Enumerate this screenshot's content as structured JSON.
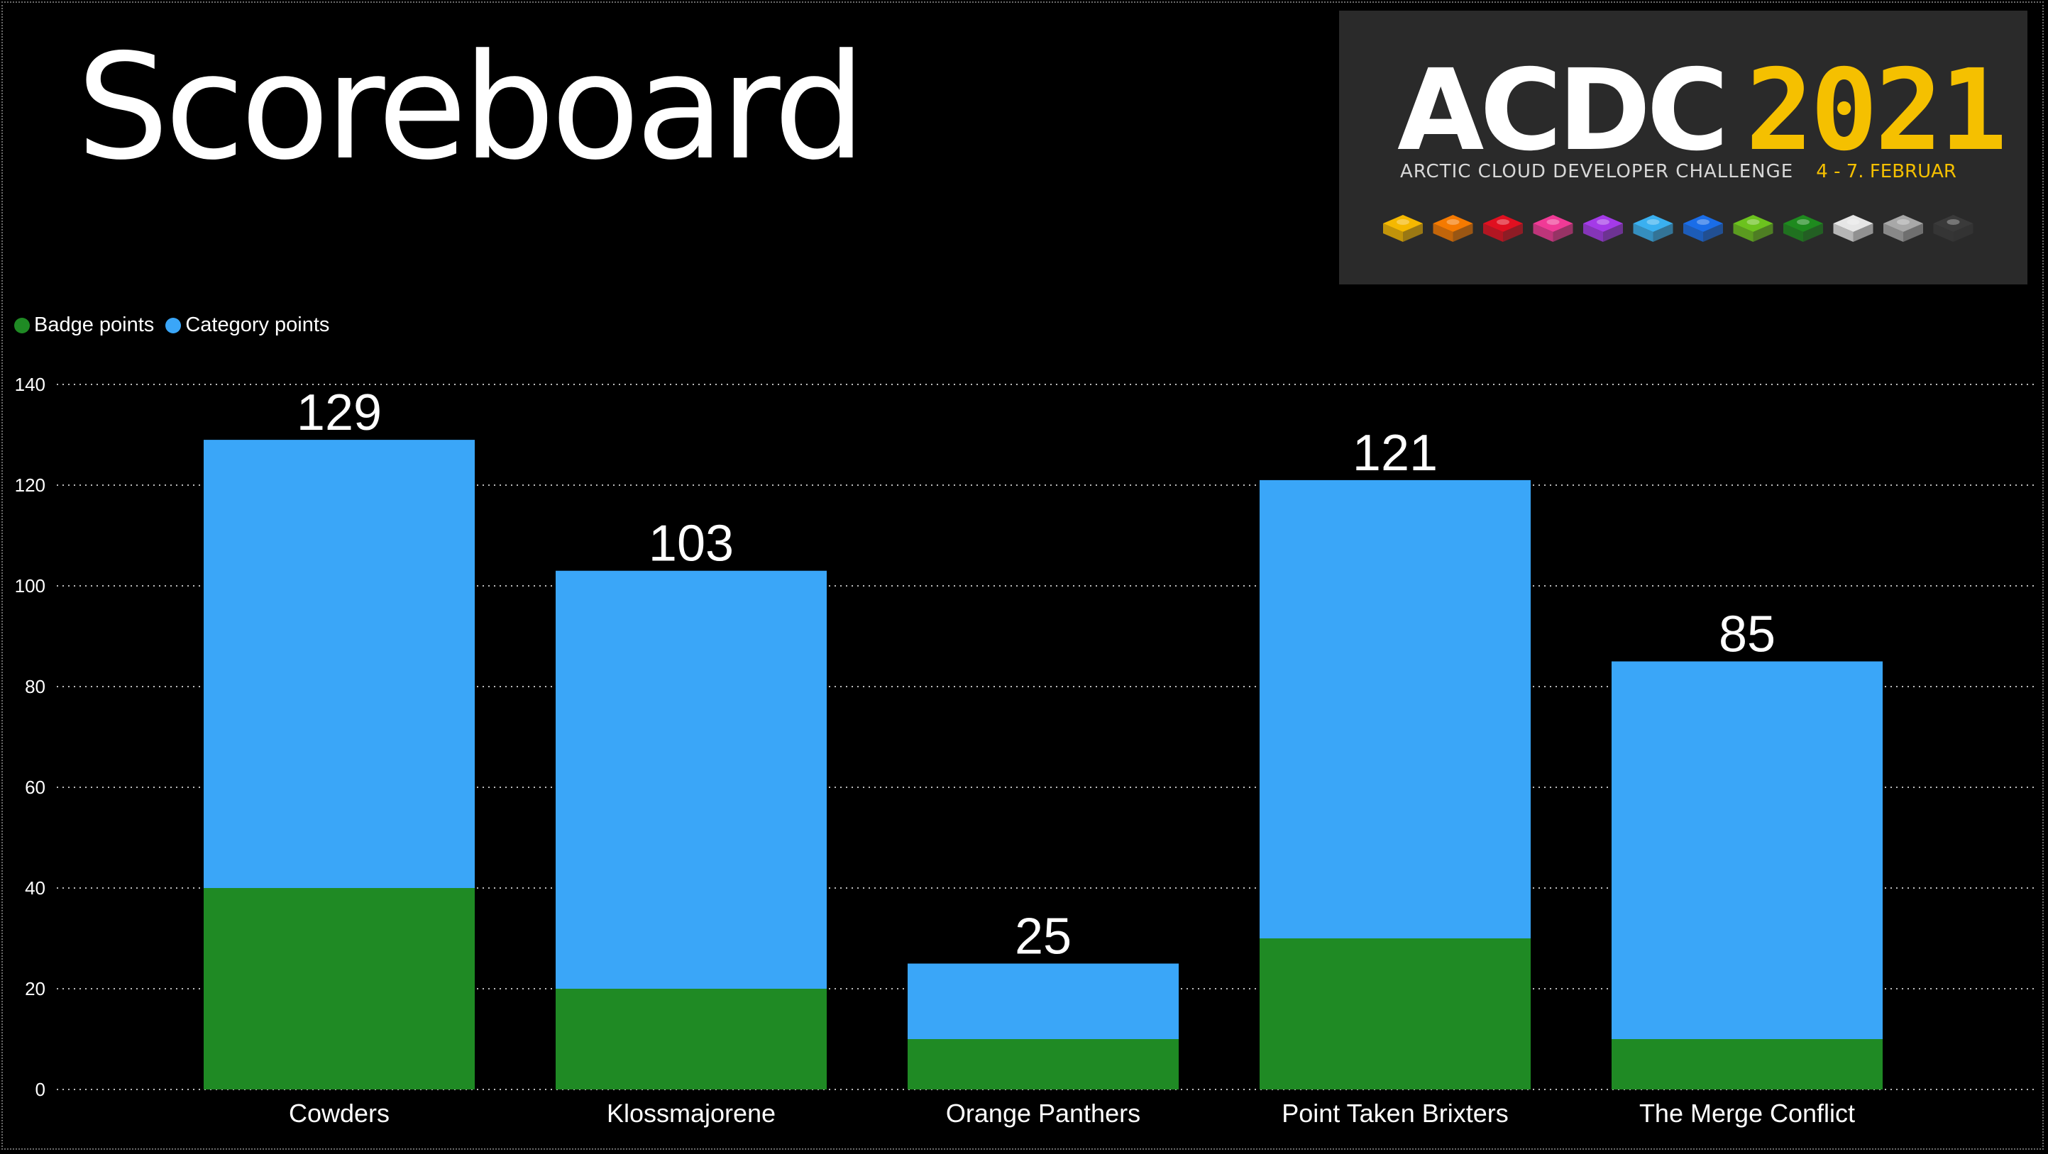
{
  "title": "Scoreboard",
  "logo": {
    "name": "ACDC",
    "year": "2021",
    "subtitle": "ARCTIC CLOUD DEVELOPER CHALLENGE",
    "date": "4 - 7. FEBRUAR",
    "brick_colors": [
      "#f5b800",
      "#f57a00",
      "#e01020",
      "#f03a96",
      "#a43ae8",
      "#3ab0f0",
      "#1a6de8",
      "#6cc21e",
      "#1e8a1e",
      "#e6e6e6",
      "#a8a8a8",
      "#3a3a3a"
    ]
  },
  "colors": {
    "background": "#000000",
    "badge": "#1f8a24",
    "category": "#3aa6f8"
  },
  "chart_data": {
    "type": "bar",
    "stacked": true,
    "categories": [
      "Cowders",
      "Klossmajorene",
      "Orange Panthers",
      "Point Taken Brixters",
      "The Merge Conflict"
    ],
    "series": [
      {
        "name": "Badge points",
        "values": [
          40,
          20,
          10,
          30,
          10
        ]
      },
      {
        "name": "Category points",
        "values": [
          89,
          83,
          15,
          91,
          75
        ]
      }
    ],
    "totals": [
      129,
      103,
      25,
      121,
      85
    ],
    "ylim": [
      0,
      140
    ],
    "yticks": [
      0,
      20,
      40,
      60,
      80,
      100,
      120,
      140
    ],
    "grid": true,
    "legend_position": "top-left"
  }
}
